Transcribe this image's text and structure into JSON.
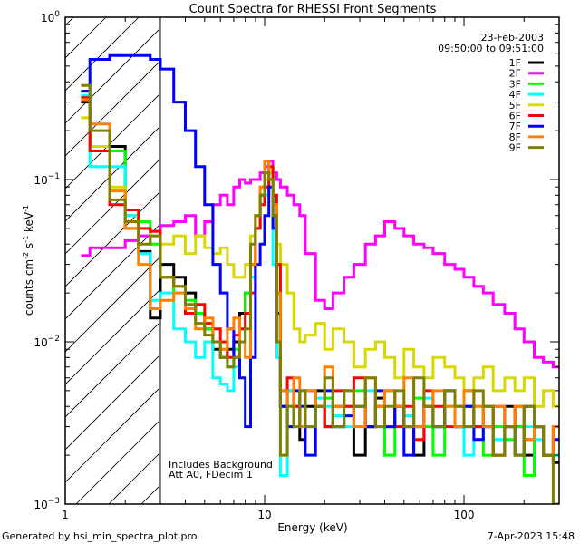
{
  "chart_data": {
    "type": "line",
    "title": "Count Spectra for RHESSI Front Segments",
    "xlabel": "Energy (keV)",
    "ylabel": {
      "main": "counts cm",
      "exp1": "-2",
      "mid": " s",
      "exp2": "-1",
      "end": " keV",
      "exp3": "-1"
    },
    "xscale": "log",
    "yscale": "log",
    "xlim": [
      1,
      300
    ],
    "ylim": [
      0.001,
      1
    ],
    "x_ticks": [
      {
        "value": 1,
        "label": "1"
      },
      {
        "value": 10,
        "label": "10"
      },
      {
        "value": 100,
        "label": "100"
      }
    ],
    "y_ticks": [
      {
        "value": 1,
        "base": "10",
        "exp": "0"
      },
      {
        "value": 0.1,
        "base": "10",
        "exp": "−1"
      },
      {
        "value": 0.01,
        "base": "10",
        "exp": "−2"
      },
      {
        "value": 0.001,
        "base": "10",
        "exp": "−3"
      }
    ],
    "hatched_region_keV": [
      1,
      3
    ],
    "legend_position": "top-right",
    "legend_header": [
      "23-Feb-2003",
      "09:50:00 to 09:51:00"
    ],
    "annotations": [
      "Includes Background",
      "Att A0, FDecim 1"
    ],
    "energy_bin_edges": [
      1.2,
      1.33,
      1.67,
      2.0,
      2.33,
      2.67,
      3.0,
      3.5,
      4.0,
      4.5,
      5.0,
      5.5,
      6.0,
      6.5,
      7.0,
      7.5,
      8.0,
      8.5,
      9.0,
      9.5,
      10,
      10.5,
      11,
      11.5,
      12,
      13,
      14,
      15,
      16,
      18,
      20,
      22,
      25,
      28,
      32,
      36,
      40,
      45,
      50,
      56,
      63,
      70,
      80,
      90,
      100,
      112,
      125,
      140,
      160,
      180,
      200,
      225,
      250,
      280,
      300
    ],
    "series": [
      {
        "name": "1F",
        "color": "#000000",
        "values": [
          0.3,
          0.16,
          0.16,
          0.05,
          0.036,
          0.014,
          0.03,
          0.025,
          0.02,
          0.015,
          0.012,
          0.009,
          0.008,
          0.009,
          0.01,
          0.015,
          0.02,
          0.03,
          0.05,
          0.08,
          0.1,
          0.11,
          0.06,
          0.015,
          0.004,
          0.005,
          0.004,
          0.0025,
          0.004,
          0.005,
          0.003,
          0.004,
          0.005,
          0.002,
          0.003,
          0.0045,
          0.003,
          0.004,
          0.003,
          0.002,
          0.004,
          0.003,
          0.005,
          0.003,
          0.004,
          0.003,
          0.003,
          0.002,
          0.004,
          0.003,
          0.002,
          0.003,
          0.002,
          0.0018
        ]
      },
      {
        "name": "2F",
        "color": "#ff00ff",
        "values": [
          0.034,
          0.038,
          0.038,
          0.042,
          0.045,
          0.048,
          0.052,
          0.055,
          0.06,
          0.045,
          0.055,
          0.07,
          0.08,
          0.07,
          0.09,
          0.1,
          0.095,
          0.1,
          0.1,
          0.11,
          0.12,
          0.13,
          0.11,
          0.1,
          0.09,
          0.08,
          0.07,
          0.06,
          0.035,
          0.018,
          0.016,
          0.02,
          0.025,
          0.03,
          0.04,
          0.045,
          0.055,
          0.05,
          0.045,
          0.04,
          0.038,
          0.035,
          0.03,
          0.028,
          0.025,
          0.022,
          0.02,
          0.017,
          0.015,
          0.012,
          0.01,
          0.008,
          0.0075,
          0.007
        ]
      },
      {
        "name": "3F",
        "color": "#00ff00",
        "values": [
          0.35,
          0.16,
          0.15,
          0.06,
          0.055,
          0.04,
          0.025,
          0.02,
          0.018,
          0.015,
          0.012,
          0.01,
          0.009,
          0.007,
          0.009,
          0.012,
          0.02,
          0.03,
          0.05,
          0.08,
          0.1,
          0.12,
          0.07,
          0.02,
          0.005,
          0.003,
          0.004,
          0.005,
          0.003,
          0.004,
          0.0045,
          0.003,
          0.004,
          0.005,
          0.003,
          0.004,
          0.002,
          0.004,
          0.003,
          0.0045,
          0.003,
          0.002,
          0.004,
          0.003,
          0.003,
          0.004,
          0.002,
          0.003,
          0.0025,
          0.003,
          0.0015,
          0.003,
          0.002,
          0.002
        ]
      },
      {
        "name": "4F",
        "color": "#00ffff",
        "values": [
          0.33,
          0.12,
          0.12,
          0.06,
          0.035,
          0.018,
          0.02,
          0.012,
          0.01,
          0.008,
          0.01,
          0.006,
          0.0055,
          0.005,
          0.007,
          0.01,
          0.015,
          0.025,
          0.05,
          0.09,
          0.08,
          0.11,
          0.03,
          0.008,
          0.0015,
          0.005,
          0.004,
          0.005,
          0.003,
          0.0045,
          0.004,
          0.0035,
          0.003,
          0.004,
          0.005,
          0.003,
          0.003,
          0.004,
          0.0035,
          0.003,
          0.0045,
          0.003,
          0.004,
          0.003,
          0.002,
          0.003,
          0.004,
          0.0025,
          0.003,
          0.002,
          0.003,
          0.0025,
          0.002,
          0.002
        ]
      },
      {
        "name": "5F",
        "color": "#d8d800",
        "values": [
          0.24,
          0.16,
          0.09,
          0.065,
          0.05,
          0.045,
          0.04,
          0.045,
          0.035,
          0.045,
          0.038,
          0.035,
          0.038,
          0.03,
          0.025,
          0.025,
          0.03,
          0.045,
          0.06,
          0.09,
          0.1,
          0.11,
          0.07,
          0.04,
          0.03,
          0.02,
          0.012,
          0.01,
          0.011,
          0.013,
          0.009,
          0.012,
          0.01,
          0.007,
          0.009,
          0.01,
          0.008,
          0.006,
          0.009,
          0.007,
          0.006,
          0.008,
          0.007,
          0.006,
          0.005,
          0.006,
          0.007,
          0.005,
          0.006,
          0.005,
          0.006,
          0.004,
          0.005,
          0.004
        ]
      },
      {
        "name": "6F",
        "color": "#ff0000",
        "values": [
          0.32,
          0.15,
          0.07,
          0.065,
          0.05,
          0.048,
          0.025,
          0.022,
          0.015,
          0.017,
          0.013,
          0.012,
          0.01,
          0.008,
          0.011,
          0.012,
          0.015,
          0.02,
          0.05,
          0.07,
          0.09,
          0.12,
          0.08,
          0.03,
          0.005,
          0.006,
          0.004,
          0.003,
          0.005,
          0.004,
          0.003,
          0.005,
          0.004,
          0.006,
          0.003,
          0.004,
          0.005,
          0.003,
          0.004,
          0.0025,
          0.005,
          0.004,
          0.003,
          0.004,
          0.005,
          0.003,
          0.004,
          0.002,
          0.003,
          0.004,
          0.0025,
          0.003,
          0.002,
          0.003
        ]
      },
      {
        "name": "7F",
        "color": "#0000ff",
        "values": [
          0.35,
          0.55,
          0.58,
          0.58,
          0.58,
          0.55,
          0.48,
          0.3,
          0.2,
          0.12,
          0.07,
          0.03,
          0.02,
          0.012,
          0.008,
          0.006,
          0.003,
          0.008,
          0.03,
          0.04,
          0.06,
          0.09,
          0.05,
          0.02,
          0.004,
          0.003,
          0.005,
          0.004,
          0.002,
          0.004,
          0.005,
          0.003,
          0.0035,
          0.004,
          0.003,
          0.005,
          0.003,
          0.004,
          0.002,
          0.003,
          0.004,
          0.003,
          0.005,
          0.003,
          0.004,
          0.0025,
          0.003,
          0.004,
          0.003,
          0.002,
          0.004,
          0.003,
          0.002,
          0.0025
        ]
      },
      {
        "name": "8F",
        "color": "#ff8000",
        "values": [
          0.31,
          0.22,
          0.085,
          0.05,
          0.03,
          0.016,
          0.018,
          0.02,
          0.016,
          0.012,
          0.014,
          0.01,
          0.009,
          0.012,
          0.014,
          0.01,
          0.008,
          0.03,
          0.06,
          0.09,
          0.13,
          0.1,
          0.07,
          0.02,
          0.005,
          0.004,
          0.006,
          0.003,
          0.005,
          0.004,
          0.007,
          0.004,
          0.005,
          0.003,
          0.006,
          0.004,
          0.005,
          0.004,
          0.006,
          0.003,
          0.004,
          0.005,
          0.004,
          0.003,
          0.005,
          0.004,
          0.003,
          0.004,
          0.003,
          0.004,
          0.0025,
          0.003,
          0.002,
          0.003
        ]
      },
      {
        "name": "9F",
        "color": "#808000",
        "values": [
          0.38,
          0.2,
          0.075,
          0.055,
          0.04,
          0.045,
          0.025,
          0.022,
          0.017,
          0.013,
          0.011,
          0.01,
          0.008,
          0.007,
          0.008,
          0.01,
          0.012,
          0.04,
          0.06,
          0.08,
          0.11,
          0.1,
          0.06,
          0.01,
          0.002,
          0.004,
          0.003,
          0.005,
          0.003,
          0.004,
          0.006,
          0.003,
          0.005,
          0.004,
          0.006,
          0.003,
          0.004,
          0.005,
          0.003,
          0.006,
          0.004,
          0.003,
          0.005,
          0.004,
          0.003,
          0.005,
          0.004,
          0.002,
          0.003,
          0.002,
          0.004,
          0.003,
          0.002,
          0.001
        ]
      }
    ]
  },
  "footer": {
    "generated_by": "Generated by hsi_min_spectra_plot.pro",
    "timestamp": "7-Apr-2023 15:48"
  }
}
